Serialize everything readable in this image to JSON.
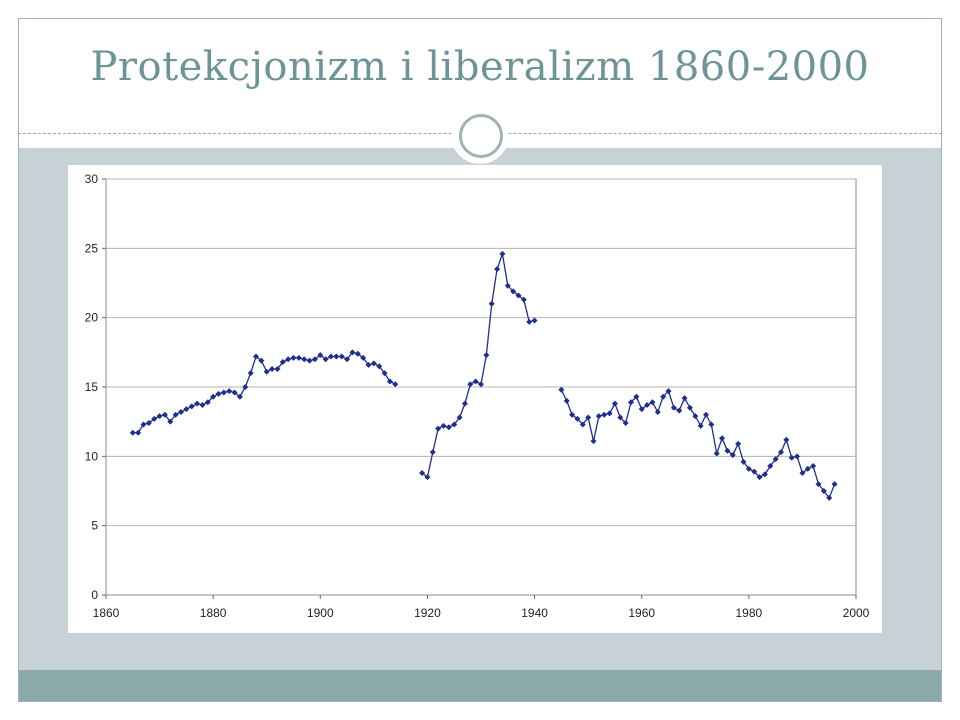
{
  "slide": {
    "title": "Protekcjonizm i liberalizm 1860-2000"
  },
  "colors": {
    "title": "#6e9596",
    "band": "#c6d2d6",
    "footer": "#89a9ab",
    "series": "#1f2f8f",
    "grid": "#b4b4b4"
  },
  "chart_data": {
    "type": "line",
    "title": "",
    "xlabel": "",
    "ylabel": "",
    "xlim": [
      1860,
      2000
    ],
    "ylim": [
      0,
      30
    ],
    "xticks": [
      1860,
      1880,
      1900,
      1920,
      1940,
      1960,
      1980,
      2000
    ],
    "yticks": [
      0,
      5,
      10,
      15,
      20,
      25,
      30
    ],
    "grid": "horizontal",
    "legend": "none",
    "series": [
      {
        "segments": [
          [
            [
              1865,
              11.7
            ],
            [
              1866,
              11.7
            ],
            [
              1867,
              12.3
            ],
            [
              1868,
              12.4
            ],
            [
              1869,
              12.7
            ],
            [
              1870,
              12.9
            ],
            [
              1871,
              13.0
            ],
            [
              1872,
              12.5
            ],
            [
              1873,
              13.0
            ],
            [
              1874,
              13.2
            ],
            [
              1875,
              13.4
            ],
            [
              1876,
              13.6
            ],
            [
              1877,
              13.8
            ],
            [
              1878,
              13.7
            ],
            [
              1879,
              13.9
            ],
            [
              1880,
              14.3
            ],
            [
              1881,
              14.5
            ],
            [
              1882,
              14.6
            ],
            [
              1883,
              14.7
            ],
            [
              1884,
              14.6
            ],
            [
              1885,
              14.3
            ],
            [
              1886,
              15.0
            ],
            [
              1887,
              16.0
            ],
            [
              1888,
              17.2
            ],
            [
              1889,
              16.9
            ],
            [
              1890,
              16.1
            ],
            [
              1891,
              16.3
            ],
            [
              1892,
              16.3
            ],
            [
              1893,
              16.8
            ],
            [
              1894,
              17.0
            ],
            [
              1895,
              17.1
            ],
            [
              1896,
              17.1
            ],
            [
              1897,
              17.0
            ],
            [
              1898,
              16.9
            ],
            [
              1899,
              17.0
            ],
            [
              1900,
              17.3
            ],
            [
              1901,
              17.0
            ],
            [
              1902,
              17.2
            ],
            [
              1903,
              17.2
            ],
            [
              1904,
              17.2
            ],
            [
              1905,
              17.0
            ],
            [
              1906,
              17.5
            ],
            [
              1907,
              17.4
            ],
            [
              1908,
              17.1
            ],
            [
              1909,
              16.6
            ],
            [
              1910,
              16.7
            ],
            [
              1911,
              16.5
            ],
            [
              1912,
              16.0
            ],
            [
              1913,
              15.4
            ],
            [
              1914,
              15.2
            ]
          ],
          [
            [
              1919,
              8.8
            ],
            [
              1920,
              8.5
            ],
            [
              1921,
              10.3
            ],
            [
              1922,
              12.0
            ],
            [
              1923,
              12.2
            ],
            [
              1924,
              12.1
            ],
            [
              1925,
              12.3
            ],
            [
              1926,
              12.8
            ],
            [
              1927,
              13.8
            ],
            [
              1928,
              15.2
            ],
            [
              1929,
              15.4
            ],
            [
              1930,
              15.2
            ],
            [
              1931,
              17.3
            ],
            [
              1932,
              21.0
            ],
            [
              1933,
              23.5
            ],
            [
              1934,
              24.6
            ],
            [
              1935,
              22.3
            ],
            [
              1936,
              21.9
            ],
            [
              1937,
              21.6
            ],
            [
              1938,
              21.3
            ],
            [
              1939,
              19.7
            ],
            [
              1940,
              19.8
            ]
          ],
          [
            [
              1945,
              14.8
            ],
            [
              1946,
              14.0
            ],
            [
              1947,
              13.0
            ],
            [
              1948,
              12.7
            ],
            [
              1949,
              12.3
            ],
            [
              1950,
              12.8
            ],
            [
              1951,
              11.1
            ],
            [
              1952,
              12.9
            ],
            [
              1953,
              13.0
            ],
            [
              1954,
              13.1
            ],
            [
              1955,
              13.8
            ],
            [
              1956,
              12.8
            ],
            [
              1957,
              12.4
            ],
            [
              1958,
              13.9
            ],
            [
              1959,
              14.3
            ],
            [
              1960,
              13.4
            ],
            [
              1961,
              13.7
            ],
            [
              1962,
              13.9
            ],
            [
              1963,
              13.2
            ],
            [
              1964,
              14.3
            ],
            [
              1965,
              14.7
            ],
            [
              1966,
              13.5
            ],
            [
              1967,
              13.3
            ],
            [
              1968,
              14.2
            ],
            [
              1969,
              13.5
            ],
            [
              1970,
              12.9
            ],
            [
              1971,
              12.2
            ],
            [
              1972,
              13.0
            ],
            [
              1973,
              12.3
            ],
            [
              1974,
              10.2
            ],
            [
              1975,
              11.3
            ],
            [
              1976,
              10.4
            ],
            [
              1977,
              10.1
            ],
            [
              1978,
              10.9
            ],
            [
              1979,
              9.6
            ],
            [
              1980,
              9.1
            ],
            [
              1981,
              8.9
            ],
            [
              1982,
              8.5
            ],
            [
              1983,
              8.7
            ],
            [
              1984,
              9.3
            ],
            [
              1985,
              9.8
            ],
            [
              1986,
              10.3
            ],
            [
              1987,
              11.2
            ],
            [
              1988,
              9.9
            ],
            [
              1989,
              10.0
            ],
            [
              1990,
              8.8
            ],
            [
              1991,
              9.1
            ],
            [
              1992,
              9.3
            ],
            [
              1993,
              8.0
            ],
            [
              1994,
              7.5
            ],
            [
              1995,
              7.0
            ],
            [
              1996,
              8.0
            ]
          ]
        ]
      }
    ]
  }
}
